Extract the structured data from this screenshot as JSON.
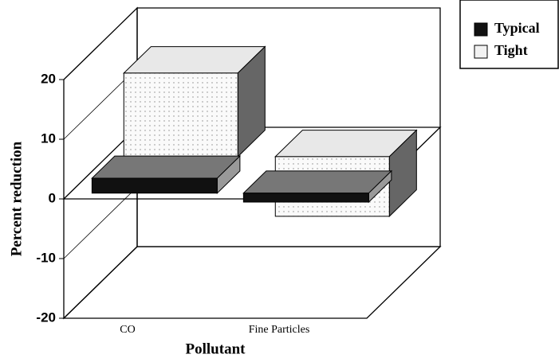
{
  "chart_data": {
    "type": "bar3d",
    "y_label": "Percent reduction",
    "x_label": "Pollutant",
    "categories": [
      "CO",
      "Fine Particles"
    ],
    "series": [
      {
        "name": "Typical",
        "color": "#111111",
        "values": [
          2.5,
          -1.5
        ]
      },
      {
        "name": "Tight",
        "color": "#f2f2f2",
        "values": [
          14,
          -10
        ]
      }
    ],
    "ylim": [
      -20,
      20
    ],
    "yticks": [
      -20,
      -10,
      0,
      10,
      20
    ],
    "legend": "top-right"
  }
}
